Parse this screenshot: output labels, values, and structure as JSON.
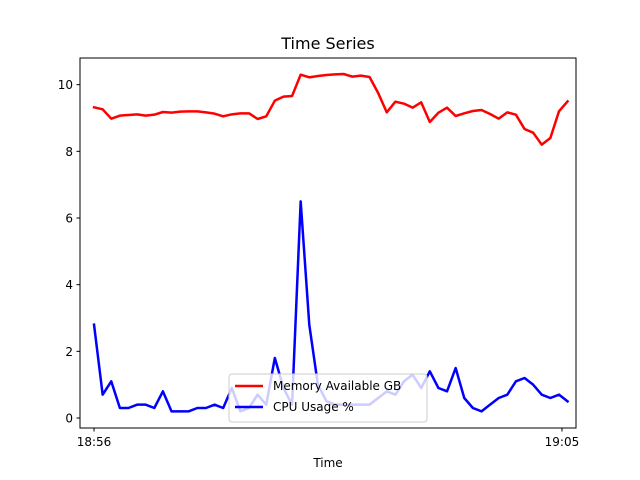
{
  "chart_data": {
    "type": "line",
    "title": "Time Series",
    "xlabel": "Time",
    "ylabel": "",
    "x_ticks": [
      {
        "label": "18:56",
        "value": 0
      },
      {
        "label": "19:05",
        "value": 9
      }
    ],
    "xlim": [
      -0.27,
      9.27
    ],
    "ylim": [
      -0.3,
      10.8
    ],
    "y_ticks": [
      0,
      2,
      4,
      6,
      8,
      10
    ],
    "grid": false,
    "legend_placement": "bottom-center",
    "colors": {
      "memory": "#ff0000",
      "cpu": "#0000ff"
    },
    "x_step_minutes": 0.1656,
    "series": [
      {
        "name": "Memory Available GB",
        "color": "#ff0000",
        "values": [
          9.32,
          9.26,
          8.98,
          9.07,
          9.09,
          9.11,
          9.07,
          9.1,
          9.18,
          9.16,
          9.19,
          9.2,
          9.2,
          9.17,
          9.13,
          9.05,
          9.11,
          9.14,
          9.14,
          8.97,
          9.05,
          9.52,
          9.64,
          9.66,
          10.3,
          10.22,
          10.26,
          10.29,
          10.31,
          10.32,
          10.24,
          10.27,
          10.23,
          9.75,
          9.17,
          9.49,
          9.43,
          9.31,
          9.47,
          8.88,
          9.16,
          9.31,
          9.06,
          9.14,
          9.21,
          9.24,
          9.12,
          8.98,
          9.17,
          9.1,
          8.67,
          8.56,
          8.2,
          8.4,
          9.2,
          9.5
        ]
      },
      {
        "name": "CPU Usage %",
        "color": "#0000ff",
        "values": [
          2.8,
          0.7,
          1.1,
          0.3,
          0.3,
          0.4,
          0.4,
          0.3,
          0.8,
          0.2,
          0.2,
          0.2,
          0.3,
          0.3,
          0.4,
          0.3,
          0.9,
          0.2,
          0.3,
          0.7,
          0.4,
          1.8,
          0.9,
          0.4,
          6.5,
          2.8,
          1.0,
          0.5,
          0.4,
          0.4,
          0.4,
          0.4,
          0.4,
          0.6,
          0.8,
          0.7,
          1.1,
          1.3,
          0.9,
          1.4,
          0.9,
          0.8,
          1.5,
          0.6,
          0.3,
          0.2,
          0.4,
          0.6,
          0.7,
          1.1,
          1.2,
          1.0,
          0.7,
          0.6,
          0.7,
          0.5
        ]
      }
    ]
  }
}
